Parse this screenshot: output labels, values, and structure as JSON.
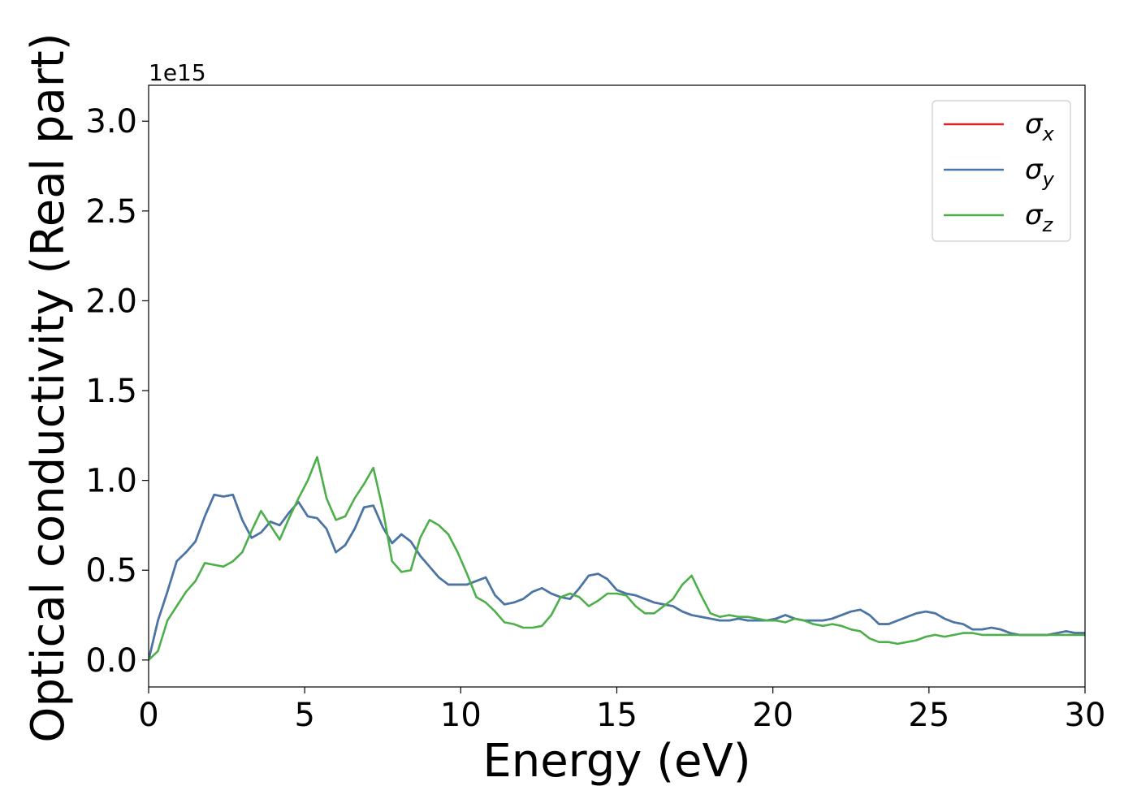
{
  "chart_data": {
    "type": "line",
    "xlabel": "Energy (eV)",
    "ylabel": "Optical conductivity (Real part)",
    "y_offset_label": "1e15",
    "xlim": [
      0,
      30
    ],
    "ylim": [
      -0.15,
      3.2
    ],
    "xticks": [
      0,
      5,
      10,
      15,
      20,
      25,
      30
    ],
    "xtick_labels": [
      "0",
      "5",
      "10",
      "15",
      "20",
      "25",
      "30"
    ],
    "yticks": [
      0.0,
      0.5,
      1.0,
      1.5,
      2.0,
      2.5,
      3.0
    ],
    "ytick_labels": [
      "0.0",
      "0.5",
      "1.0",
      "1.5",
      "2.0",
      "2.5",
      "3.0"
    ],
    "grid": false,
    "legend": {
      "position": "upper right",
      "entries": [
        {
          "symbol": "σ",
          "subscript": "x",
          "color": "#d62728"
        },
        {
          "symbol": "σ",
          "subscript": "y",
          "color": "#4477aa"
        },
        {
          "symbol": "σ",
          "subscript": "z",
          "color": "#4daf4a"
        }
      ]
    },
    "series": [
      {
        "color": "#d62728",
        "x": [
          0,
          0.3,
          0.6,
          0.9,
          1.2,
          1.5,
          1.8,
          2.1,
          2.4,
          2.7,
          3.0,
          3.3,
          3.6,
          3.9,
          4.2,
          4.5,
          4.8,
          5.1,
          5.4,
          5.7,
          6.0,
          6.3,
          6.6,
          6.9,
          7.2,
          7.5,
          7.8,
          8.1,
          8.4,
          8.7,
          9.0,
          9.3,
          9.6,
          9.9,
          10.2,
          10.5,
          10.8,
          11.1,
          11.4,
          11.7,
          12.0,
          12.3,
          12.6,
          12.9,
          13.2,
          13.5,
          13.8,
          14.1,
          14.4,
          14.7,
          15.0,
          15.3,
          15.6,
          15.9,
          16.2,
          16.5,
          16.8,
          17.1,
          17.4,
          17.7,
          18.0,
          18.3,
          18.6,
          18.9,
          19.2,
          19.5,
          19.8,
          20.1,
          20.4,
          20.7,
          21.0,
          21.3,
          21.6,
          21.9,
          22.2,
          22.5,
          22.8,
          23.1,
          23.4,
          23.7,
          24.0,
          24.3,
          24.6,
          24.9,
          25.2,
          25.5,
          25.8,
          26.1,
          26.4,
          26.7,
          27.0,
          27.3,
          27.6,
          27.9,
          28.2,
          28.5,
          28.8,
          29.1,
          29.4,
          29.7,
          30.0
        ],
        "y": [
          0.0,
          0.22,
          0.38,
          0.55,
          0.6,
          0.66,
          0.8,
          0.92,
          0.91,
          0.92,
          0.78,
          0.68,
          0.71,
          0.77,
          0.75,
          0.82,
          0.88,
          0.8,
          0.79,
          0.73,
          0.6,
          0.64,
          0.73,
          0.85,
          0.86,
          0.74,
          0.65,
          0.7,
          0.66,
          0.58,
          0.52,
          0.46,
          0.42,
          0.42,
          0.42,
          0.44,
          0.46,
          0.36,
          0.31,
          0.32,
          0.34,
          0.38,
          0.4,
          0.37,
          0.35,
          0.34,
          0.4,
          0.47,
          0.48,
          0.45,
          0.39,
          0.37,
          0.36,
          0.34,
          0.32,
          0.31,
          0.3,
          0.27,
          0.25,
          0.24,
          0.23,
          0.22,
          0.22,
          0.23,
          0.22,
          0.22,
          0.22,
          0.23,
          0.25,
          0.23,
          0.22,
          0.22,
          0.22,
          0.23,
          0.25,
          0.27,
          0.28,
          0.25,
          0.2,
          0.2,
          0.22,
          0.24,
          0.26,
          0.27,
          0.26,
          0.23,
          0.21,
          0.2,
          0.17,
          0.17,
          0.18,
          0.17,
          0.15,
          0.14,
          0.14,
          0.14,
          0.14,
          0.15,
          0.16,
          0.15,
          0.15
        ]
      },
      {
        "color": "#4477aa",
        "x": [
          0,
          0.3,
          0.6,
          0.9,
          1.2,
          1.5,
          1.8,
          2.1,
          2.4,
          2.7,
          3.0,
          3.3,
          3.6,
          3.9,
          4.2,
          4.5,
          4.8,
          5.1,
          5.4,
          5.7,
          6.0,
          6.3,
          6.6,
          6.9,
          7.2,
          7.5,
          7.8,
          8.1,
          8.4,
          8.7,
          9.0,
          9.3,
          9.6,
          9.9,
          10.2,
          10.5,
          10.8,
          11.1,
          11.4,
          11.7,
          12.0,
          12.3,
          12.6,
          12.9,
          13.2,
          13.5,
          13.8,
          14.1,
          14.4,
          14.7,
          15.0,
          15.3,
          15.6,
          15.9,
          16.2,
          16.5,
          16.8,
          17.1,
          17.4,
          17.7,
          18.0,
          18.3,
          18.6,
          18.9,
          19.2,
          19.5,
          19.8,
          20.1,
          20.4,
          20.7,
          21.0,
          21.3,
          21.6,
          21.9,
          22.2,
          22.5,
          22.8,
          23.1,
          23.4,
          23.7,
          24.0,
          24.3,
          24.6,
          24.9,
          25.2,
          25.5,
          25.8,
          26.1,
          26.4,
          26.7,
          27.0,
          27.3,
          27.6,
          27.9,
          28.2,
          28.5,
          28.8,
          29.1,
          29.4,
          29.7,
          30.0
        ],
        "y": [
          0.0,
          0.22,
          0.38,
          0.55,
          0.6,
          0.66,
          0.8,
          0.92,
          0.91,
          0.92,
          0.78,
          0.68,
          0.71,
          0.77,
          0.75,
          0.82,
          0.88,
          0.8,
          0.79,
          0.73,
          0.6,
          0.64,
          0.73,
          0.85,
          0.86,
          0.74,
          0.65,
          0.7,
          0.66,
          0.58,
          0.52,
          0.46,
          0.42,
          0.42,
          0.42,
          0.44,
          0.46,
          0.36,
          0.31,
          0.32,
          0.34,
          0.38,
          0.4,
          0.37,
          0.35,
          0.34,
          0.4,
          0.47,
          0.48,
          0.45,
          0.39,
          0.37,
          0.36,
          0.34,
          0.32,
          0.31,
          0.3,
          0.27,
          0.25,
          0.24,
          0.23,
          0.22,
          0.22,
          0.23,
          0.22,
          0.22,
          0.22,
          0.23,
          0.25,
          0.23,
          0.22,
          0.22,
          0.22,
          0.23,
          0.25,
          0.27,
          0.28,
          0.25,
          0.2,
          0.2,
          0.22,
          0.24,
          0.26,
          0.27,
          0.26,
          0.23,
          0.21,
          0.2,
          0.17,
          0.17,
          0.18,
          0.17,
          0.15,
          0.14,
          0.14,
          0.14,
          0.14,
          0.15,
          0.16,
          0.15,
          0.15
        ]
      },
      {
        "color": "#4daf4a",
        "x": [
          0,
          0.3,
          0.6,
          0.9,
          1.2,
          1.5,
          1.8,
          2.1,
          2.4,
          2.7,
          3.0,
          3.3,
          3.6,
          3.9,
          4.2,
          4.5,
          4.8,
          5.1,
          5.4,
          5.7,
          6.0,
          6.3,
          6.6,
          6.9,
          7.2,
          7.5,
          7.8,
          8.1,
          8.4,
          8.7,
          9.0,
          9.3,
          9.6,
          9.9,
          10.2,
          10.5,
          10.8,
          11.1,
          11.4,
          11.7,
          12.0,
          12.3,
          12.6,
          12.9,
          13.2,
          13.5,
          13.8,
          14.1,
          14.4,
          14.7,
          15.0,
          15.3,
          15.6,
          15.9,
          16.2,
          16.5,
          16.8,
          17.1,
          17.4,
          17.7,
          18.0,
          18.3,
          18.6,
          18.9,
          19.2,
          19.5,
          19.8,
          20.1,
          20.4,
          20.7,
          21.0,
          21.3,
          21.6,
          21.9,
          22.2,
          22.5,
          22.8,
          23.1,
          23.4,
          23.7,
          24.0,
          24.3,
          24.6,
          24.9,
          25.2,
          25.5,
          25.8,
          26.1,
          26.4,
          26.7,
          27.0,
          27.3,
          27.6,
          27.9,
          28.2,
          28.5,
          28.8,
          29.1,
          29.4,
          29.7,
          30.0
        ],
        "y": [
          0.0,
          0.05,
          0.22,
          0.3,
          0.38,
          0.44,
          0.54,
          0.53,
          0.52,
          0.55,
          0.6,
          0.72,
          0.83,
          0.75,
          0.67,
          0.79,
          0.9,
          1.0,
          1.13,
          0.9,
          0.78,
          0.8,
          0.9,
          0.98,
          1.07,
          0.84,
          0.55,
          0.49,
          0.5,
          0.68,
          0.78,
          0.75,
          0.7,
          0.6,
          0.48,
          0.35,
          0.32,
          0.27,
          0.21,
          0.2,
          0.18,
          0.18,
          0.19,
          0.25,
          0.35,
          0.37,
          0.35,
          0.3,
          0.33,
          0.37,
          0.37,
          0.36,
          0.3,
          0.26,
          0.26,
          0.3,
          0.34,
          0.42,
          0.47,
          0.36,
          0.26,
          0.24,
          0.25,
          0.24,
          0.24,
          0.23,
          0.22,
          0.22,
          0.21,
          0.23,
          0.22,
          0.2,
          0.19,
          0.2,
          0.19,
          0.17,
          0.16,
          0.12,
          0.1,
          0.1,
          0.09,
          0.1,
          0.11,
          0.13,
          0.14,
          0.13,
          0.14,
          0.15,
          0.15,
          0.14,
          0.14,
          0.14,
          0.14,
          0.14,
          0.14,
          0.14,
          0.14,
          0.14,
          0.14,
          0.14,
          0.14
        ]
      }
    ]
  }
}
